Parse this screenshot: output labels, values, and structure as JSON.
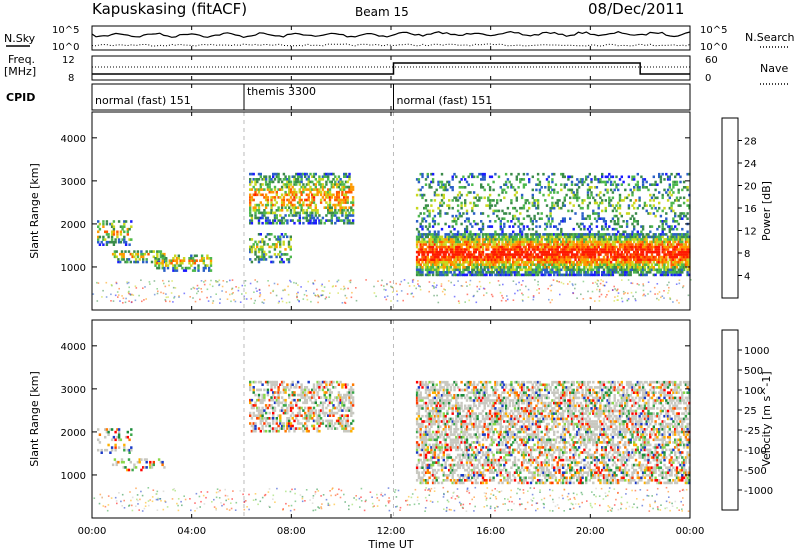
{
  "header": {
    "site": "Kapuskasing (fitACF)",
    "beam": "Beam 15",
    "date": "08/Dec/2011"
  },
  "side_labels": {
    "nsky": "N.Sky",
    "freq_line1": "Freq.",
    "freq_line2": "[MHz]",
    "cpid": "CPID",
    "nsearch": "N.Search",
    "nave": "Nave"
  },
  "top_ticks": {
    "nsky_left": [
      "10^5",
      "10^0"
    ],
    "nsearch_right": [
      "10^5",
      "10^0"
    ],
    "freq_left": [
      "12",
      "8"
    ],
    "nave_right": [
      "60",
      "0"
    ]
  },
  "cpid_segments": [
    {
      "label": "normal (fast) 151",
      "start_h": 0
    },
    {
      "label": "themis 3300",
      "start_h": 6.1
    },
    {
      "label": "normal (fast) 151",
      "start_h": 12.1
    }
  ],
  "x_axis": {
    "label": "Time UT",
    "ticks": [
      "00:00",
      "04:00",
      "08:00",
      "12:00",
      "16:00",
      "20:00",
      "00:00"
    ]
  },
  "chart_data": [
    {
      "type": "heatmap",
      "title": "",
      "xlabel": "Time UT",
      "ylabel": "Slant Range [km]",
      "x_range_h": [
        0,
        24
      ],
      "ylim": [
        0,
        4600
      ],
      "yticks": [
        "1000",
        "2000",
        "3000",
        "4000"
      ],
      "colorbar": {
        "label": "Power [dB]",
        "ticks": [
          "4",
          "8",
          "12",
          "16",
          "20",
          "24",
          "28"
        ],
        "colors": [
          "#1a1aff",
          "#2a5fc8",
          "#3a8a4a",
          "#4db84d",
          "#c8d81e",
          "#ff9a00",
          "#ff5a00",
          "#ff1a00"
        ]
      },
      "echo_regions": [
        {
          "t0": 0.2,
          "t1": 1.6,
          "r0": 1500,
          "r1": 2100,
          "level": 0.45
        },
        {
          "t0": 0.8,
          "t1": 3.0,
          "r0": 1100,
          "r1": 1400,
          "level": 0.5
        },
        {
          "t0": 2.5,
          "t1": 4.8,
          "r0": 900,
          "r1": 1300,
          "level": 0.5
        },
        {
          "t0": 6.3,
          "t1": 10.5,
          "r0": 2000,
          "r1": 3200,
          "level": 0.55
        },
        {
          "t0": 6.3,
          "t1": 8.0,
          "r0": 1100,
          "r1": 1800,
          "level": 0.35
        },
        {
          "t0": 13.0,
          "t1": 24.0,
          "r0": 800,
          "r1": 1800,
          "level": 0.85
        },
        {
          "t0": 13.0,
          "t1": 24.0,
          "r0": 1800,
          "r1": 3200,
          "level": 0.25
        }
      ]
    },
    {
      "type": "heatmap",
      "title": "",
      "xlabel": "Time UT",
      "ylabel": "Slant Range [km]",
      "x_range_h": [
        0,
        24
      ],
      "ylim": [
        0,
        4600
      ],
      "yticks": [
        "1000",
        "2000",
        "3000",
        "4000"
      ],
      "colorbar": {
        "label": "Velocity [m s^-1]",
        "ticks": [
          "1000",
          "500",
          "100",
          "25",
          "-25",
          "-100",
          "-500",
          "-1000"
        ],
        "colors": [
          "#1a3ac8",
          "#1a8a3a",
          "#3aa84a",
          "#8ad84a",
          "#c8c8c0",
          "#ffb000",
          "#ff7a00",
          "#ff3a00",
          "#ff0000"
        ]
      },
      "echo_regions": [
        {
          "t0": 0.2,
          "t1": 1.6,
          "r0": 1500,
          "r1": 2100,
          "level": 0.3
        },
        {
          "t0": 0.8,
          "t1": 3.0,
          "r0": 1100,
          "r1": 1400,
          "level": 0.3
        },
        {
          "t0": 6.3,
          "t1": 10.5,
          "r0": 2000,
          "r1": 3200,
          "level": 0.5
        },
        {
          "t0": 13.0,
          "t1": 24.0,
          "r0": 800,
          "r1": 1800,
          "level": 0.5
        },
        {
          "t0": 13.0,
          "t1": 24.0,
          "r0": 1800,
          "r1": 3200,
          "level": 0.6
        }
      ]
    }
  ]
}
